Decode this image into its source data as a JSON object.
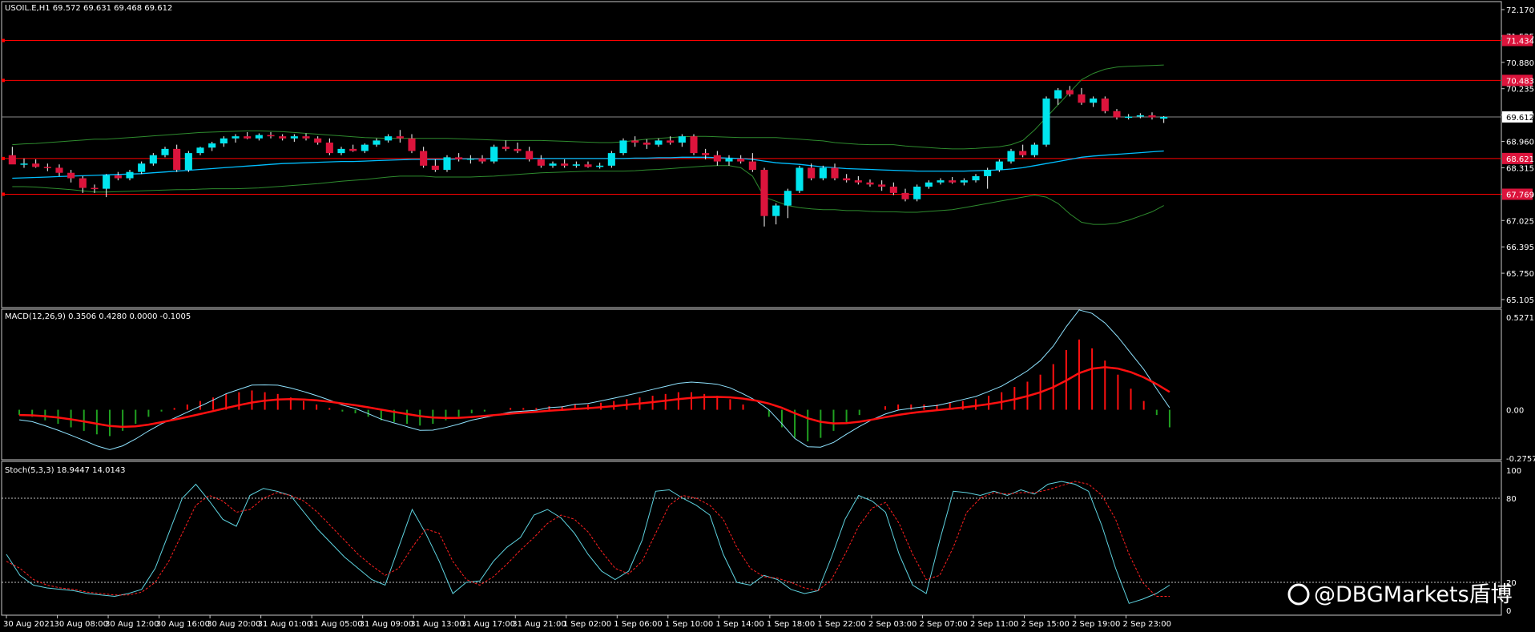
{
  "watermark": "@DBGMarkets盾博",
  "colors": {
    "background": "#000000",
    "frame": "#c8c8c8",
    "bull_candle": "#00e5ee",
    "bear_candle": "#dc143c",
    "hline": "#ff0000",
    "bb_band": "#2e8b2e",
    "ma_line": "#00bfff",
    "macd_line": "#8fe3ff",
    "signal_line": "#ff1010",
    "hist_pos": "#ff1010",
    "hist_neg": "#20a020",
    "stoch_main": "#5ed3e0",
    "stoch_signal": "#ff2020",
    "price_label_bg": "#dc143c"
  },
  "chart_data": [
    {
      "type": "candlestick",
      "header": "USOIL.E,H1  69.572 69.631 69.468 69.612",
      "ylim": [
        65.105,
        72.17
      ],
      "y_ticks": [
        "72.170",
        "71.525",
        "70.880",
        "70.235",
        "69.590",
        "68.960",
        "68.315",
        "67.670",
        "67.025",
        "66.395",
        "65.750",
        "65.105"
      ],
      "current_price": "69.612",
      "horizontal_levels": [
        {
          "label": "71.434",
          "value": 71.434
        },
        {
          "label": "70.483",
          "value": 70.483
        },
        {
          "label": "68.621",
          "value": 68.621
        },
        {
          "label": "67.769",
          "value": 67.769
        }
      ],
      "x_ticks": [
        "30 Aug 2021",
        "30 Aug 08:00",
        "30 Aug 12:00",
        "30 Aug 16:00",
        "30 Aug 20:00",
        "31 Aug 01:00",
        "31 Aug 05:00",
        "31 Aug 09:00",
        "31 Aug 13:00",
        "31 Aug 17:00",
        "31 Aug 21:00",
        "1 Sep 02:00",
        "1 Sep 06:00",
        "1 Sep 10:00",
        "1 Sep 14:00",
        "1 Sep 18:00",
        "1 Sep 22:00",
        "2 Sep 03:00",
        "2 Sep 07:00",
        "2 Sep 11:00",
        "2 Sep 15:00",
        "2 Sep 19:00",
        "2 Sep 23:00"
      ],
      "candles": [
        [
          68.7,
          68.9,
          68.5,
          68.48
        ],
        [
          68.48,
          68.62,
          68.4,
          68.5
        ],
        [
          68.5,
          68.6,
          68.4,
          68.42
        ],
        [
          68.42,
          68.5,
          68.32,
          68.4
        ],
        [
          68.4,
          68.48,
          68.2,
          68.28
        ],
        [
          68.28,
          68.35,
          68.05,
          68.15
        ],
        [
          68.15,
          68.2,
          67.8,
          67.92
        ],
        [
          67.92,
          68.0,
          67.8,
          67.9
        ],
        [
          67.9,
          68.25,
          67.7,
          68.22
        ],
        [
          68.22,
          68.3,
          68.1,
          68.15
        ],
        [
          68.15,
          68.35,
          68.1,
          68.3
        ],
        [
          68.3,
          68.55,
          68.25,
          68.5
        ],
        [
          68.5,
          68.75,
          68.45,
          68.7
        ],
        [
          68.7,
          68.9,
          68.65,
          68.85
        ],
        [
          68.85,
          68.95,
          68.3,
          68.35
        ],
        [
          68.35,
          68.8,
          68.3,
          68.75
        ],
        [
          68.75,
          68.9,
          68.7,
          68.88
        ],
        [
          68.88,
          69.02,
          68.8,
          68.98
        ],
        [
          68.98,
          69.15,
          68.9,
          69.1
        ],
        [
          69.1,
          69.2,
          69.0,
          69.15
        ],
        [
          69.15,
          69.25,
          69.08,
          69.1
        ],
        [
          69.1,
          69.22,
          69.05,
          69.18
        ],
        [
          69.18,
          69.25,
          69.1,
          69.15
        ],
        [
          69.15,
          69.2,
          69.05,
          69.1
        ],
        [
          69.1,
          69.2,
          69.02,
          69.15
        ],
        [
          69.15,
          69.22,
          69.05,
          69.1
        ],
        [
          69.1,
          69.15,
          68.95,
          69.0
        ],
        [
          69.0,
          69.1,
          68.7,
          68.75
        ],
        [
          68.75,
          68.9,
          68.7,
          68.85
        ],
        [
          68.85,
          68.95,
          68.78,
          68.8
        ],
        [
          68.8,
          68.98,
          68.75,
          68.95
        ],
        [
          68.95,
          69.1,
          68.9,
          69.05
        ],
        [
          69.05,
          69.2,
          69.0,
          69.15
        ],
        [
          69.15,
          69.3,
          69.0,
          69.1
        ],
        [
          69.1,
          69.2,
          68.75,
          68.8
        ],
        [
          68.8,
          68.9,
          68.4,
          68.45
        ],
        [
          68.45,
          68.6,
          68.3,
          68.35
        ],
        [
          68.35,
          68.7,
          68.3,
          68.65
        ],
        [
          68.65,
          68.75,
          68.55,
          68.6
        ],
        [
          68.6,
          68.7,
          68.5,
          68.62
        ],
        [
          68.62,
          68.7,
          68.5,
          68.55
        ],
        [
          68.55,
          68.95,
          68.5,
          68.9
        ],
        [
          68.9,
          69.05,
          68.8,
          68.85
        ],
        [
          68.85,
          69.0,
          68.75,
          68.8
        ],
        [
          68.8,
          68.9,
          68.55,
          68.6
        ],
        [
          68.6,
          68.7,
          68.4,
          68.45
        ],
        [
          68.45,
          68.55,
          68.4,
          68.5
        ],
        [
          68.5,
          68.6,
          68.4,
          68.45
        ],
        [
          68.45,
          68.55,
          68.4,
          68.48
        ],
        [
          68.48,
          68.55,
          68.4,
          68.42
        ],
        [
          68.42,
          68.52,
          68.38,
          68.45
        ],
        [
          68.45,
          68.8,
          68.4,
          68.75
        ],
        [
          68.75,
          69.1,
          68.7,
          69.05
        ],
        [
          69.05,
          69.15,
          68.9,
          69.0
        ],
        [
          69.0,
          69.08,
          68.85,
          68.95
        ],
        [
          68.95,
          69.1,
          68.9,
          69.05
        ],
        [
          69.05,
          69.15,
          68.95,
          69.0
        ],
        [
          69.0,
          69.2,
          68.9,
          69.15
        ],
        [
          69.15,
          69.2,
          68.7,
          68.75
        ],
        [
          68.75,
          68.85,
          68.6,
          68.7
        ],
        [
          68.7,
          68.8,
          68.45,
          68.55
        ],
        [
          68.55,
          68.7,
          68.45,
          68.62
        ],
        [
          68.62,
          68.7,
          68.5,
          68.55
        ],
        [
          68.55,
          68.75,
          68.3,
          68.35
        ],
        [
          68.35,
          68.4,
          67.0,
          67.25
        ],
        [
          67.25,
          67.55,
          67.05,
          67.5
        ],
        [
          67.5,
          67.9,
          67.2,
          67.85
        ],
        [
          67.85,
          68.45,
          67.8,
          68.4
        ],
        [
          68.4,
          68.5,
          68.1,
          68.15
        ],
        [
          68.15,
          68.45,
          68.1,
          68.4
        ],
        [
          68.4,
          68.5,
          68.1,
          68.15
        ],
        [
          68.15,
          68.25,
          68.05,
          68.1
        ],
        [
          68.1,
          68.2,
          68.0,
          68.05
        ],
        [
          68.05,
          68.12,
          67.95,
          68.0
        ],
        [
          68.0,
          68.1,
          67.85,
          67.95
        ],
        [
          67.95,
          68.05,
          67.75,
          67.8
        ],
        [
          67.8,
          67.9,
          67.6,
          67.65
        ],
        [
          67.65,
          68.0,
          67.6,
          67.95
        ],
        [
          67.95,
          68.1,
          67.9,
          68.05
        ],
        [
          68.05,
          68.15,
          68.0,
          68.1
        ],
        [
          68.1,
          68.18,
          68.02,
          68.05
        ],
        [
          68.05,
          68.15,
          67.98,
          68.1
        ],
        [
          68.1,
          68.25,
          68.05,
          68.2
        ],
        [
          68.2,
          68.4,
          67.9,
          68.35
        ],
        [
          68.35,
          68.6,
          68.3,
          68.55
        ],
        [
          68.55,
          68.85,
          68.5,
          68.8
        ],
        [
          68.8,
          68.95,
          68.65,
          68.7
        ],
        [
          68.7,
          69.0,
          68.65,
          68.95
        ],
        [
          68.95,
          70.1,
          68.9,
          70.05
        ],
        [
          70.05,
          70.3,
          69.9,
          70.25
        ],
        [
          70.25,
          70.35,
          70.1,
          70.15
        ],
        [
          70.15,
          70.3,
          69.9,
          69.95
        ],
        [
          69.95,
          70.1,
          69.85,
          70.05
        ],
        [
          70.05,
          70.1,
          69.7,
          69.75
        ],
        [
          69.75,
          69.8,
          69.55,
          69.6
        ],
        [
          69.6,
          69.68,
          69.55,
          69.62
        ],
        [
          69.62,
          69.7,
          69.58,
          69.65
        ],
        [
          69.65,
          69.72,
          69.55,
          69.6
        ],
        [
          69.572,
          69.631,
          69.468,
          69.612
        ]
      ],
      "bollinger_upper": [
        68.95,
        68.97,
        68.98,
        69.0,
        69.02,
        69.04,
        69.06,
        69.08,
        69.08,
        69.1,
        69.12,
        69.14,
        69.16,
        69.18,
        69.2,
        69.22,
        69.24,
        69.25,
        69.26,
        69.27,
        69.28,
        69.28,
        69.27,
        69.26,
        69.24,
        69.22,
        69.2,
        69.18,
        69.16,
        69.14,
        69.12,
        69.11,
        69.1,
        69.1,
        69.1,
        69.1,
        69.1,
        69.1,
        69.09,
        69.08,
        69.07,
        69.06,
        69.05,
        69.05,
        69.05,
        69.05,
        69.04,
        69.03,
        69.02,
        69.01,
        69.0,
        69.0,
        69.02,
        69.05,
        69.08,
        69.1,
        69.12,
        69.14,
        69.15,
        69.15,
        69.14,
        69.13,
        69.12,
        69.12,
        69.12,
        69.12,
        69.1,
        69.08,
        69.06,
        69.04,
        69.0,
        68.98,
        68.96,
        68.95,
        68.95,
        68.95,
        68.92,
        68.9,
        68.88,
        68.86,
        68.85,
        68.85,
        68.86,
        68.88,
        68.9,
        68.95,
        69.05,
        69.3,
        69.6,
        69.9,
        70.2,
        70.5,
        70.65,
        70.75,
        70.8,
        70.82,
        70.83,
        70.84,
        70.85
      ],
      "bollinger_lower": [
        67.95,
        67.95,
        67.94,
        67.92,
        67.9,
        67.88,
        67.85,
        67.82,
        67.82,
        67.83,
        67.84,
        67.85,
        67.86,
        67.87,
        67.88,
        67.88,
        67.89,
        67.9,
        67.9,
        67.9,
        67.91,
        67.92,
        67.94,
        67.96,
        67.98,
        68.0,
        68.02,
        68.05,
        68.08,
        68.1,
        68.12,
        68.15,
        68.18,
        68.2,
        68.2,
        68.2,
        68.18,
        68.18,
        68.18,
        68.18,
        68.19,
        68.2,
        68.22,
        68.24,
        68.26,
        68.28,
        68.29,
        68.3,
        68.31,
        68.32,
        68.32,
        68.32,
        68.32,
        68.33,
        68.35,
        68.36,
        68.38,
        68.4,
        68.42,
        68.44,
        68.45,
        68.45,
        68.4,
        68.2,
        67.7,
        67.6,
        67.5,
        67.45,
        67.42,
        67.4,
        67.4,
        67.38,
        67.38,
        67.36,
        67.35,
        67.35,
        67.34,
        67.34,
        67.36,
        67.38,
        67.4,
        67.45,
        67.5,
        67.55,
        67.6,
        67.65,
        67.7,
        67.75,
        67.7,
        67.55,
        67.3,
        67.1,
        67.05,
        67.05,
        67.08,
        67.15,
        67.25,
        67.35,
        67.5
      ],
      "moving_average": [
        68.15,
        68.16,
        68.17,
        68.18,
        68.19,
        68.2,
        68.21,
        68.22,
        68.23,
        68.24,
        68.25,
        68.26,
        68.28,
        68.3,
        68.32,
        68.34,
        68.36,
        68.38,
        68.4,
        68.42,
        68.44,
        68.46,
        68.48,
        68.5,
        68.51,
        68.52,
        68.53,
        68.54,
        68.55,
        68.55,
        68.56,
        68.57,
        68.58,
        68.59,
        68.6,
        68.6,
        68.6,
        68.6,
        68.61,
        68.61,
        68.61,
        68.62,
        68.62,
        68.62,
        68.62,
        68.62,
        68.62,
        68.62,
        68.62,
        68.62,
        68.62,
        68.62,
        68.62,
        68.63,
        68.63,
        68.64,
        68.64,
        68.65,
        68.65,
        68.65,
        68.64,
        68.63,
        68.62,
        68.6,
        68.56,
        68.52,
        68.5,
        68.48,
        68.45,
        68.42,
        68.4,
        68.38,
        68.37,
        68.36,
        68.35,
        68.34,
        68.33,
        68.32,
        68.32,
        68.32,
        68.32,
        68.32,
        68.33,
        68.34,
        68.35,
        68.37,
        68.4,
        68.45,
        68.5,
        68.55,
        68.6,
        68.65,
        68.68,
        68.7,
        68.72,
        68.74,
        68.76,
        68.78,
        68.8
      ]
    },
    {
      "type": "macd",
      "header": "MACD(12,26,9) 0.3506 0.4280 0.0000 -0.1005",
      "ylim": [
        -0.2757,
        0.5271
      ],
      "y_ticks": [
        "0.5271",
        "0.00",
        "-0.2757"
      ],
      "histogram": [
        -0.03,
        -0.04,
        -0.06,
        -0.08,
        -0.1,
        -0.12,
        -0.14,
        -0.15,
        -0.12,
        -0.08,
        -0.04,
        -0.01,
        0.01,
        0.03,
        0.05,
        0.07,
        0.09,
        0.1,
        0.11,
        0.1,
        0.09,
        0.07,
        0.05,
        0.03,
        0.01,
        -0.01,
        -0.02,
        -0.04,
        -0.06,
        -0.07,
        -0.08,
        -0.09,
        -0.08,
        -0.06,
        -0.04,
        -0.02,
        -0.01,
        0.0,
        0.01,
        0.01,
        0.01,
        0.02,
        0.02,
        0.03,
        0.03,
        0.04,
        0.05,
        0.06,
        0.07,
        0.08,
        0.09,
        0.1,
        0.1,
        0.09,
        0.08,
        0.06,
        0.03,
        0.0,
        -0.04,
        -0.1,
        -0.16,
        -0.18,
        -0.16,
        -0.12,
        -0.07,
        -0.03,
        0.0,
        0.02,
        0.03,
        0.03,
        0.03,
        0.03,
        0.04,
        0.05,
        0.06,
        0.08,
        0.1,
        0.13,
        0.16,
        0.2,
        0.26,
        0.34,
        0.4,
        0.35,
        0.28,
        0.2,
        0.12,
        0.05,
        -0.03,
        -0.1
      ]
    },
    {
      "type": "stochastic",
      "header": "Stoch(5,3,3) 18.9447 14.0143",
      "ylim": [
        0,
        100
      ],
      "y_ticks": [
        "100",
        "80",
        "20",
        "0"
      ],
      "levels": [
        80,
        20
      ],
      "main": [
        40,
        25,
        18,
        16,
        15,
        14,
        12,
        11,
        10,
        12,
        15,
        30,
        55,
        80,
        90,
        78,
        65,
        60,
        82,
        87,
        85,
        82,
        70,
        58,
        48,
        38,
        30,
        22,
        18,
        45,
        72,
        55,
        35,
        12,
        20,
        21,
        35,
        45,
        52,
        68,
        72,
        66,
        55,
        40,
        28,
        22,
        28,
        50,
        85,
        86,
        80,
        75,
        68,
        40,
        20,
        18,
        25,
        22,
        15,
        12,
        14,
        38,
        65,
        82,
        78,
        70,
        40,
        18,
        12,
        50,
        85,
        84,
        82,
        85,
        82,
        86,
        83,
        90,
        92,
        90,
        85,
        60,
        30,
        5,
        8,
        12,
        18
      ],
      "signal": [
        35,
        30,
        22,
        18,
        16,
        15,
        13,
        12,
        11,
        11,
        13,
        20,
        35,
        55,
        75,
        82,
        78,
        70,
        72,
        80,
        84,
        82,
        78,
        70,
        60,
        50,
        40,
        32,
        25,
        30,
        45,
        58,
        55,
        35,
        22,
        18,
        24,
        33,
        43,
        52,
        62,
        68,
        65,
        56,
        42,
        30,
        26,
        35,
        55,
        75,
        82,
        80,
        75,
        65,
        45,
        30,
        24,
        23,
        20,
        16,
        14,
        22,
        40,
        60,
        73,
        77,
        62,
        40,
        22,
        25,
        45,
        70,
        80,
        84,
        83,
        84,
        84,
        86,
        89,
        92,
        90,
        82,
        65,
        40,
        20,
        10,
        10
      ]
    }
  ]
}
